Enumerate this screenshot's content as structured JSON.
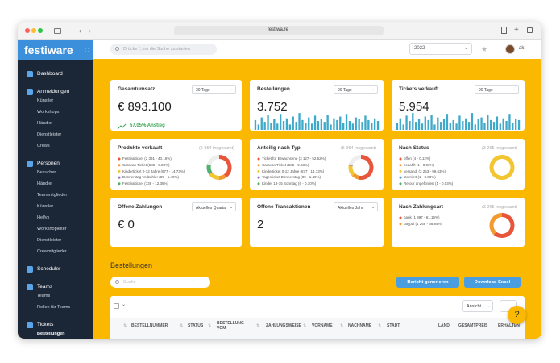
{
  "browser": {
    "url": "festiwa.re"
  },
  "sidebar": {
    "logo": "festiware",
    "items": [
      {
        "label": "Dashboard"
      },
      {
        "label": "Anmeldungen",
        "children": [
          "Künstler",
          "Workshops",
          "Händler",
          "Dienstleister",
          "Crews"
        ]
      },
      {
        "label": "Personen",
        "children": [
          "Besucher",
          "Händler",
          "Teammitglieder",
          "Künstler",
          "Helfys",
          "Workshopleiter",
          "Dienstleister",
          "Crewmitglieder"
        ]
      },
      {
        "label": "Scheduler"
      },
      {
        "label": "Teams",
        "children": [
          "Teams",
          "Rollen für Teams"
        ]
      },
      {
        "label": "Tickets",
        "children": [
          "Bestellungen"
        ]
      }
    ]
  },
  "topbar": {
    "search_placeholder": "Drücke /, um die Suche zu starten",
    "year": "2022",
    "user": "ak"
  },
  "cards": [
    {
      "title": "Gesamtumsatz",
      "period": "30 Tage",
      "value": "€ 893.100",
      "trend": "57.05% Anstieg"
    },
    {
      "title": "Bestellungen",
      "period": "90 Tage",
      "value": "3.752",
      "bars": [
        55,
        30,
        70,
        45,
        85,
        40,
        60,
        35,
        90,
        50,
        65,
        30,
        75,
        45,
        95,
        55,
        40,
        70,
        35,
        80,
        50,
        60,
        45,
        85,
        30,
        65,
        55,
        75,
        40,
        90,
        50,
        35,
        70,
        60,
        45,
        80,
        55,
        40,
        65,
        50
      ]
    },
    {
      "title": "Tickets verkauft",
      "period": "90 Tage",
      "value": "5.954",
      "bars": [
        40,
        65,
        30,
        80,
        50,
        95,
        45,
        60,
        35,
        75,
        55,
        85,
        30,
        70,
        45,
        60,
        90,
        40,
        55,
        35,
        80,
        50,
        65,
        45,
        95,
        30,
        60,
        70,
        40,
        85,
        55,
        45,
        75,
        35,
        65,
        50,
        90,
        40,
        60,
        55
      ]
    },
    {
      "title": "Produkte verkauft",
      "total": "(5 954 insgesamt)",
      "items": [
        {
          "label": "Festivalticket (2 391 - 40.16%)",
          "share": 40.16,
          "color": "#e9553b"
        },
        {
          "label": "Caravan Ticket (585 - 9.83%)",
          "share": 9.83,
          "color": "#f39a2e"
        },
        {
          "label": "Kinderticket 0-12 Jahre (877 - 14.73%)",
          "share": 14.73,
          "color": "#f2c630"
        },
        {
          "label": "Donnerstag Vollzahler (89 - 1.49%)",
          "share": 1.49,
          "color": "#8a6ad6"
        },
        {
          "label": "Festivalticket (736 - 12.36%)",
          "share": 12.36,
          "color": "#4db36a"
        }
      ]
    },
    {
      "title": "Anteilig nach Typ",
      "total": "(5 954 insgesamt)",
      "items": [
        {
          "label": "Ticket für Erwachsene (3 127 - 52.52%)",
          "share": 52.52,
          "color": "#e9553b"
        },
        {
          "label": "Caravan Ticket (585 - 9.83%)",
          "share": 9.83,
          "color": "#f39a2e"
        },
        {
          "label": "Kinderticket 0-12 Jahre (877 - 14.73%)",
          "share": 14.73,
          "color": "#f2c630"
        },
        {
          "label": "Tagesticket Donnerstag (89 - 1.49%)",
          "share": 1.49,
          "color": "#8a6ad6"
        },
        {
          "label": "Kinder 13-15 Sonntag (6 - 0.10%)",
          "share": 0.1,
          "color": "#4db36a"
        }
      ]
    },
    {
      "title": "Nach Status",
      "total": "(3 265 insgesamt)",
      "items": [
        {
          "label": "offen (4 - 0.12%)",
          "share": 0.12,
          "color": "#e9553b"
        },
        {
          "label": "bezahlt (1 - 0.03%)",
          "share": 0.03,
          "color": "#f39a2e"
        },
        {
          "label": "versandt (3 253 - 99.63%)",
          "share": 99.63,
          "color": "#f2c630"
        },
        {
          "label": "storniert (1 - 0.03%)",
          "share": 0.03,
          "color": "#4a8fd8"
        },
        {
          "label": "Retour angefordert (1 - 0.03%)",
          "share": 0.03,
          "color": "#4db36a"
        }
      ]
    },
    {
      "title": "Offene Zahlungen",
      "period": "Aktuelles Quartal",
      "value": "€ 0"
    },
    {
      "title": "Offene Transaktionen",
      "period": "Aktuelles Jahr",
      "value": "2"
    },
    {
      "title": "Nach Zahlungsart",
      "total": "(3 265 insgesamt)",
      "items": [
        {
          "label": "bank (1 997 - 61.16%)",
          "share": 61.16,
          "color": "#e9553b"
        },
        {
          "label": "paypal (1 268 - 38.84%)",
          "share": 38.84,
          "color": "#f39a2e"
        }
      ]
    }
  ],
  "orders": {
    "title": "Bestellungen",
    "search_placeholder": "Suche",
    "buttons": [
      "Bericht generieren",
      "Download Excel"
    ],
    "view": "Ansicht",
    "columns": [
      "BESTELLNUMMER",
      "STATUS",
      "BESTELLUNG VOM",
      "ZAHLUNGSWEISE",
      "VORNAME",
      "NACHNAME",
      "STADT",
      "LAND",
      "GESAMTPREIS",
      "ERHALTEN"
    ]
  },
  "help": "?"
}
